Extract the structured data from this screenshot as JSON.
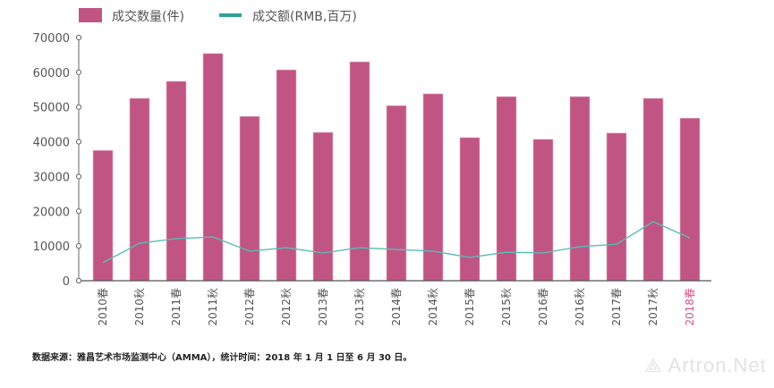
{
  "chart_data": {
    "type": "bar",
    "categories": [
      "2010春",
      "2010秋",
      "2011春",
      "2011秋",
      "2012春",
      "2012秋",
      "2013春",
      "2013秋",
      "2014春",
      "2014秋",
      "2015春",
      "2015秋",
      "2016春",
      "2016秋",
      "2017春",
      "2017秋",
      "2018春"
    ],
    "series": [
      {
        "name": "成交数量(件)",
        "type": "bar",
        "color": "#c05584",
        "values": [
          37500,
          52500,
          57400,
          65400,
          47300,
          60700,
          42700,
          63000,
          50400,
          53800,
          41200,
          53000,
          40700,
          53000,
          42500,
          52500,
          46800
        ]
      },
      {
        "name": "成交额(RMB,百万)",
        "type": "line",
        "color": "#5bbcb4",
        "values": [
          5200,
          10800,
          12100,
          12600,
          8500,
          9500,
          8000,
          9500,
          9000,
          8500,
          6700,
          8200,
          8000,
          9800,
          10500,
          17000,
          12300
        ]
      }
    ],
    "ylim": [
      0,
      70000
    ],
    "yticks": [
      "0",
      "10000",
      "20000",
      "30000",
      "40000",
      "50000",
      "60000",
      "70000"
    ],
    "legend": "top",
    "highlight_category_color": "#d0538a"
  },
  "source_note": "数据来源：雅昌艺术市场监测中心（AMMA），统计时间：2018 年 1 月 1 日至 6 月 30 日。",
  "watermark": "Artron.Net"
}
